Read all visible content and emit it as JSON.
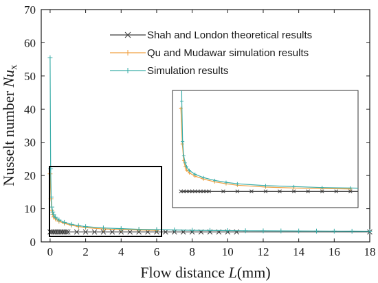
{
  "chart_data": {
    "type": "line",
    "xlabel": {
      "prefix": "Flow distance ",
      "italic": "L",
      "suffix": "(mm)"
    },
    "ylabel": {
      "prefix": "Nusselt number ",
      "italic": "Nu",
      "subscript": "x"
    },
    "xlim": [
      -0.5,
      18
    ],
    "ylim": [
      0,
      70
    ],
    "xticks": [
      0,
      2,
      4,
      6,
      8,
      10,
      12,
      14,
      16,
      18
    ],
    "yticks": [
      0,
      10,
      20,
      30,
      40,
      50,
      60,
      70
    ],
    "legend_position": "top-center",
    "series": [
      {
        "name": "Shah and London theoretical results",
        "color": "#3a3a3a",
        "marker": "x",
        "x": [
          0.0,
          0.1,
          0.2,
          0.3,
          0.4,
          0.5,
          0.6,
          0.7,
          0.8,
          0.9,
          1.0,
          1.5,
          2.0,
          2.5,
          3.0,
          3.5,
          4.0,
          4.5,
          5.0,
          5.5,
          6.0,
          6.5,
          7.0,
          7.5,
          8.0,
          8.5,
          9.0,
          9.5,
          10.0,
          10.5,
          18.0
        ],
        "y": [
          3.0,
          3.0,
          3.0,
          3.0,
          3.0,
          3.0,
          3.0,
          3.0,
          3.0,
          3.0,
          3.0,
          3.0,
          3.0,
          3.0,
          3.0,
          3.0,
          3.0,
          3.0,
          3.0,
          3.0,
          3.0,
          3.0,
          3.0,
          3.0,
          3.0,
          3.0,
          3.0,
          3.0,
          3.0,
          3.0,
          3.0
        ]
      },
      {
        "name": "Qu and Mudawar simulation results",
        "color": "#f0a040",
        "marker": "+",
        "x": [
          0.0,
          0.05,
          0.1,
          0.15,
          0.2,
          0.3,
          0.5,
          0.8,
          1.2,
          1.6,
          2.0,
          3.0,
          4.0,
          5.0,
          6.0
        ],
        "y": [
          20.5,
          13.0,
          9.5,
          8.2,
          7.5,
          6.9,
          6.2,
          5.6,
          5.0,
          4.6,
          4.3,
          3.9,
          3.7,
          3.6,
          3.5
        ]
      },
      {
        "name": "Simulation results",
        "color": "#3aada8",
        "marker": "+",
        "x": [
          0.0,
          0.03,
          0.06,
          0.1,
          0.15,
          0.2,
          0.3,
          0.5,
          0.8,
          1.2,
          1.6,
          2.0,
          3.0,
          4.0,
          5.0,
          6.0,
          7.0,
          8.0,
          9.0,
          10.0,
          11.0,
          12.0,
          13.0,
          14.0,
          15.0,
          16.0,
          17.0,
          18.0
        ],
        "y": [
          55.5,
          22.0,
          13.5,
          10.5,
          9.0,
          8.2,
          7.4,
          6.6,
          5.9,
          5.3,
          4.9,
          4.6,
          4.2,
          4.0,
          3.8,
          3.7,
          3.6,
          3.5,
          3.45,
          3.4,
          3.35,
          3.32,
          3.3,
          3.28,
          3.26,
          3.24,
          3.22,
          3.2
        ]
      }
    ]
  }
}
